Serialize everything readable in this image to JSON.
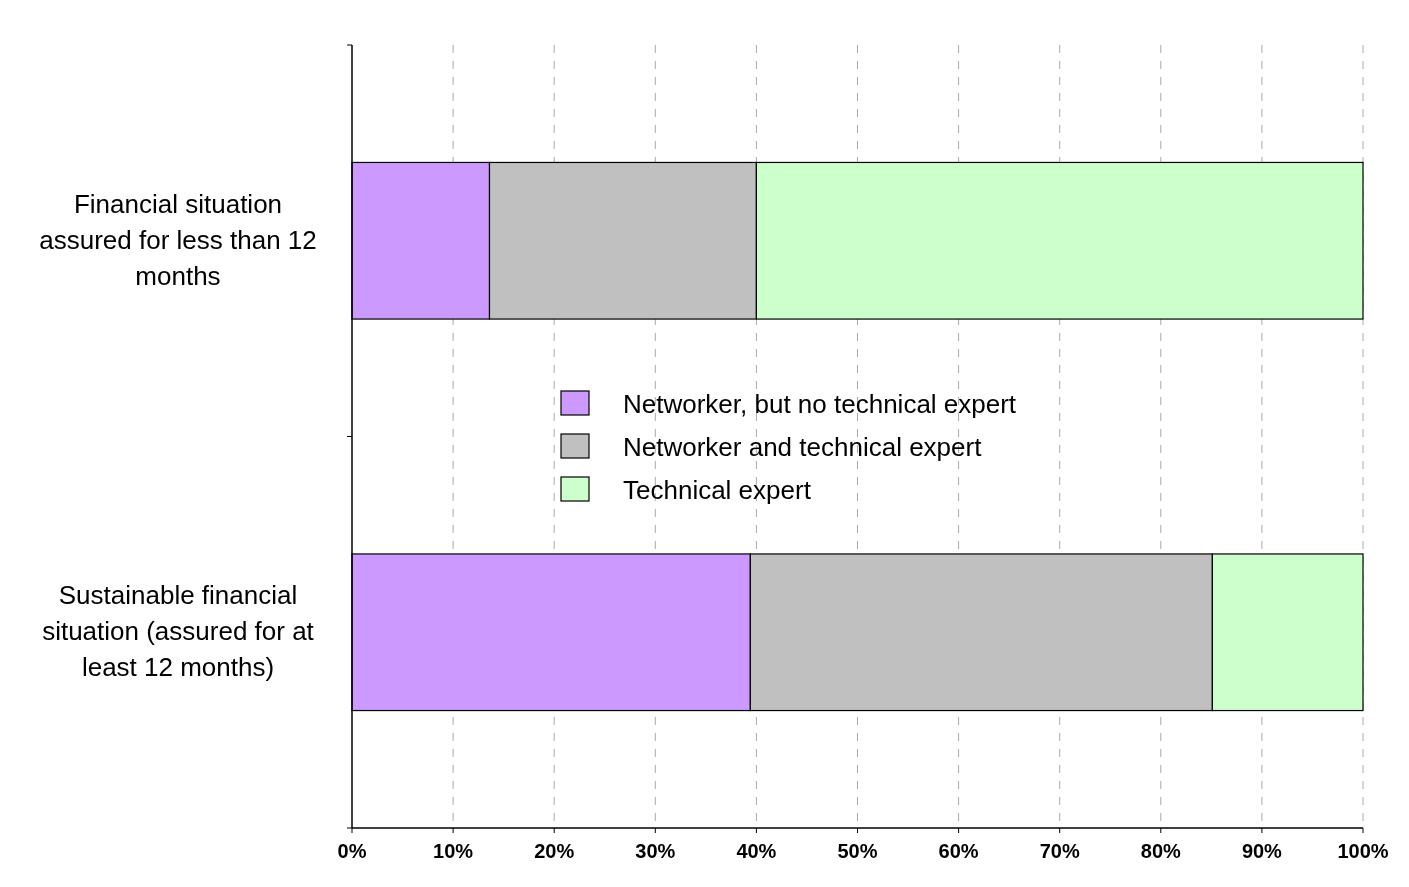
{
  "chart_data": {
    "type": "bar",
    "orientation": "horizontal",
    "stacked": true,
    "categories": [
      "Financial situation assured for less than 12 months",
      "Sustainable financial situation (assured for at least 12 months)"
    ],
    "series": [
      {
        "name": "Networker, but no technical expert",
        "color": "#cc99ff",
        "values": [
          13.6,
          39.4
        ]
      },
      {
        "name": "Networker and technical expert",
        "color": "#c0c0c0",
        "values": [
          26.4,
          45.7
        ]
      },
      {
        "name": "Technical expert",
        "color": "#ccffcc",
        "values": [
          60,
          14.9
        ]
      }
    ],
    "xlim": [
      0,
      100
    ],
    "xticks": [
      {
        "value": 0,
        "label": "0%"
      },
      {
        "value": 10,
        "label": "10%"
      },
      {
        "value": 20,
        "label": "20%"
      },
      {
        "value": 30,
        "label": "30%"
      },
      {
        "value": 40,
        "label": "40%"
      },
      {
        "value": 50,
        "label": "50%"
      },
      {
        "value": 60,
        "label": "60%"
      },
      {
        "value": 70,
        "label": "70%"
      },
      {
        "value": 80,
        "label": "80%"
      },
      {
        "value": 90,
        "label": "90%"
      },
      {
        "value": 100,
        "label": "100%"
      }
    ],
    "grid": "x",
    "legend": "center"
  }
}
